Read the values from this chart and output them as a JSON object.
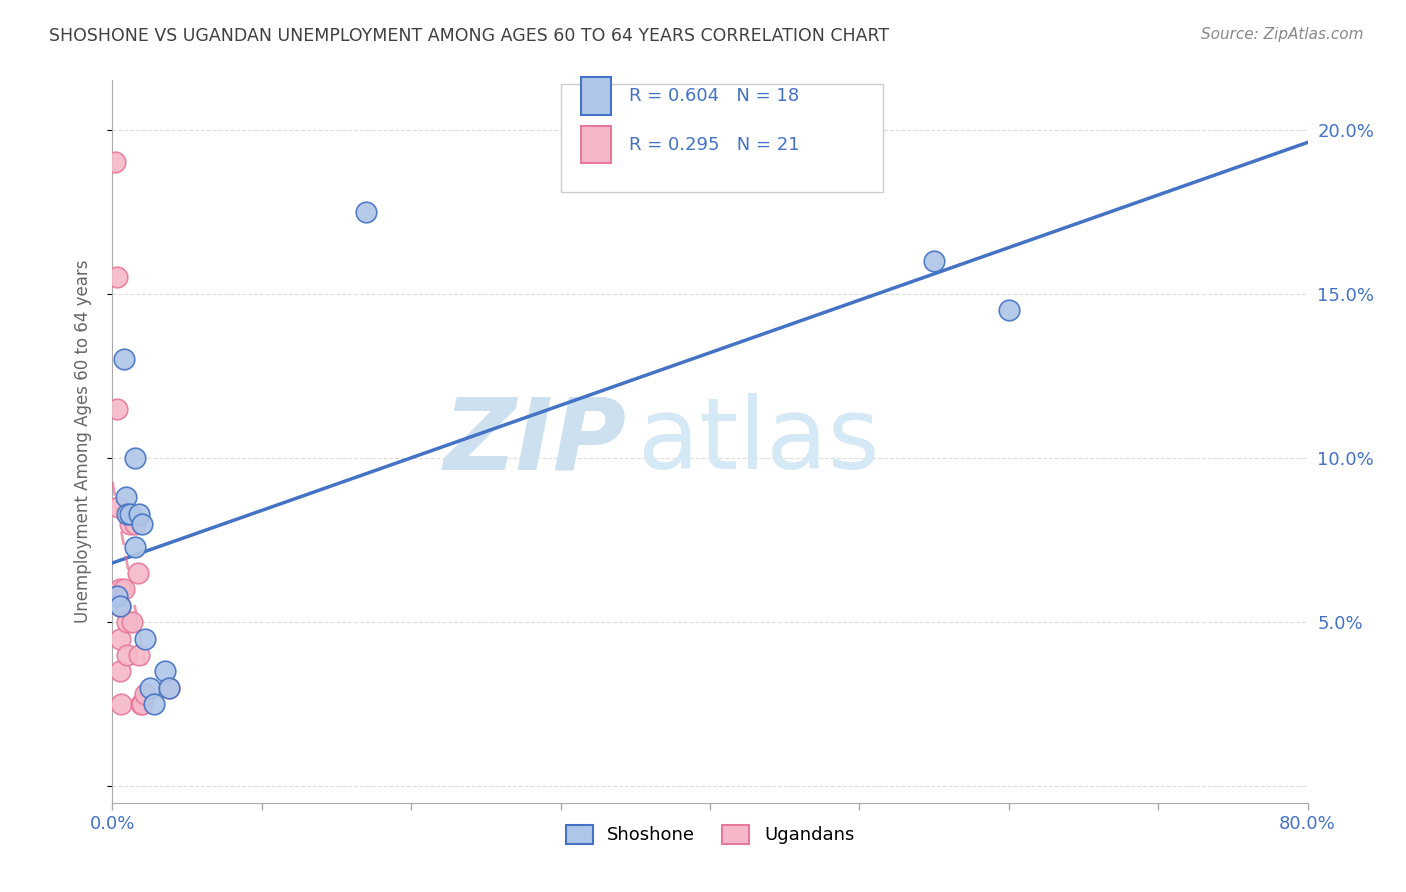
{
  "title": "SHOSHONE VS UGANDAN UNEMPLOYMENT AMONG AGES 60 TO 64 YEARS CORRELATION CHART",
  "source": "Source: ZipAtlas.com",
  "ylabel_label": "Unemployment Among Ages 60 to 64 years",
  "xlim": [
    0.0,
    0.8
  ],
  "ylim": [
    -0.005,
    0.215
  ],
  "xticks": [
    0.0,
    0.1,
    0.2,
    0.3,
    0.4,
    0.5,
    0.6,
    0.7,
    0.8
  ],
  "xticklabels": [
    "0.0%",
    "",
    "",
    "",
    "",
    "",
    "",
    "",
    "80.0%"
  ],
  "yticks": [
    0.0,
    0.05,
    0.1,
    0.15,
    0.2
  ],
  "yticklabels_right": [
    "",
    "5.0%",
    "10.0%",
    "15.0%",
    "20.0%"
  ],
  "shoshone_x": [
    0.003,
    0.005,
    0.008,
    0.009,
    0.01,
    0.012,
    0.015,
    0.015,
    0.018,
    0.02,
    0.022,
    0.025,
    0.028,
    0.035,
    0.038,
    0.55,
    0.6,
    0.17
  ],
  "shoshone_y": [
    0.058,
    0.055,
    0.13,
    0.088,
    0.083,
    0.083,
    0.073,
    0.1,
    0.083,
    0.08,
    0.045,
    0.03,
    0.025,
    0.035,
    0.03,
    0.16,
    0.145,
    0.175
  ],
  "ugandan_x": [
    0.002,
    0.003,
    0.003,
    0.004,
    0.005,
    0.005,
    0.005,
    0.005,
    0.006,
    0.008,
    0.01,
    0.01,
    0.012,
    0.013,
    0.015,
    0.017,
    0.018,
    0.019,
    0.02,
    0.022,
    0.038
  ],
  "ugandan_y": [
    0.19,
    0.155,
    0.115,
    0.085,
    0.06,
    0.055,
    0.045,
    0.035,
    0.025,
    0.06,
    0.05,
    0.04,
    0.08,
    0.05,
    0.08,
    0.065,
    0.04,
    0.025,
    0.025,
    0.028,
    0.03
  ],
  "shoshone_color": "#aec6e8",
  "ugandan_color": "#f5b8c8",
  "shoshone_edge_color": "#4472c4",
  "ugandan_edge_color": "#e8799a",
  "shoshone_line_color": "#4472c4",
  "ugandan_line_color": "#e07090",
  "shoshone_r": 0.604,
  "shoshone_n": 18,
  "ugandan_r": 0.295,
  "ugandan_n": 21,
  "legend_label_shoshone": "Shoshone",
  "legend_label_ugandan": "Ugandans",
  "watermark_zip": "ZIP",
  "watermark_atlas": "atlas",
  "background_color": "#ffffff",
  "grid_color": "#dddddd",
  "title_color": "#404040",
  "axis_label_color": "#4472c4",
  "tick_color": "#aaaaaa"
}
